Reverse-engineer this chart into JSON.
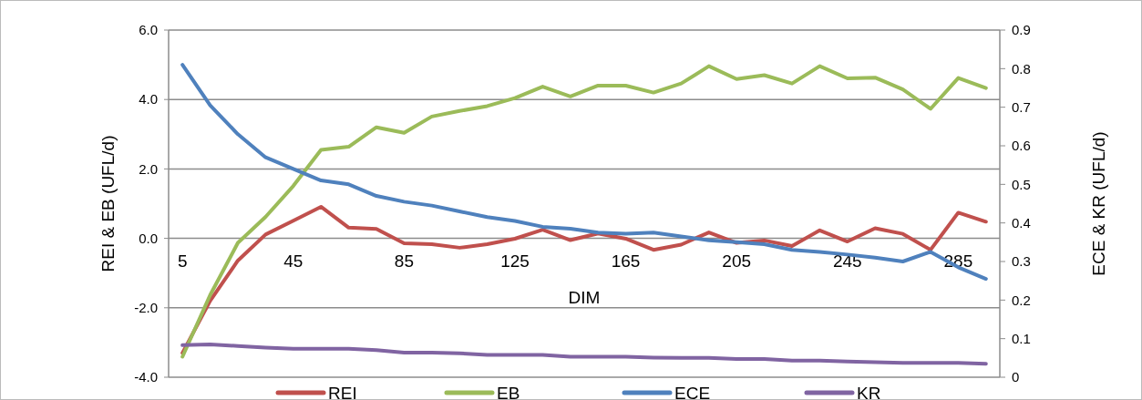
{
  "chart_data": {
    "type": "line",
    "xlabel": "DIM",
    "ylabel": "REI & EB (UFL/d)",
    "y2label": "ECE & KR (UFL/d)",
    "x": [
      5,
      15,
      25,
      35,
      45,
      55,
      65,
      75,
      85,
      95,
      105,
      115,
      125,
      135,
      145,
      155,
      165,
      175,
      185,
      195,
      205,
      215,
      225,
      235,
      245,
      255,
      265,
      275,
      285,
      295
    ],
    "xlim": [
      0,
      300
    ],
    "xticks": [
      5,
      45,
      85,
      125,
      165,
      205,
      245,
      285
    ],
    "ylim": [
      -4,
      6
    ],
    "yticks": [
      {
        "value": -4,
        "label": "-4.0"
      },
      {
        "value": -2,
        "label": "-2.0"
      },
      {
        "value": 0,
        "label": "0.0"
      },
      {
        "value": 2,
        "label": "2.0"
      },
      {
        "value": 4,
        "label": "4.0"
      },
      {
        "value": 6,
        "label": "6.0"
      }
    ],
    "y2lim": [
      0,
      0.9
    ],
    "y2ticks": [
      0,
      0.1,
      0.2,
      0.3,
      0.4,
      0.5,
      0.6,
      0.7,
      0.8,
      0.9
    ],
    "grid": "y",
    "legend": "bottom",
    "series": [
      {
        "name": "REI",
        "color": "#c0504d",
        "values": [
          -3.3,
          -1.8,
          -0.64,
          0.11,
          0.51,
          0.91,
          0.31,
          0.27,
          -0.14,
          -0.17,
          -0.27,
          -0.17,
          -0.01,
          0.25,
          -0.05,
          0.14,
          -0.01,
          -0.33,
          -0.18,
          0.17,
          -0.13,
          -0.06,
          -0.22,
          0.23,
          -0.09,
          0.29,
          0.13,
          -0.33,
          0.74,
          0.48
        ]
      },
      {
        "name": "EB",
        "color": "#9bbb59",
        "values": [
          -3.41,
          -1.63,
          -0.13,
          0.62,
          1.51,
          2.55,
          2.64,
          3.2,
          3.04,
          3.51,
          3.67,
          3.81,
          4.04,
          4.37,
          4.09,
          4.4,
          4.4,
          4.2,
          4.46,
          4.96,
          4.59,
          4.7,
          4.46,
          4.96,
          4.61,
          4.63,
          4.29,
          3.73,
          4.62,
          4.33
        ]
      },
      {
        "name": "ECE",
        "color": "#4f81bd",
        "axis": "y2",
        "values": [
          0.81,
          0.705,
          0.63,
          0.57,
          0.54,
          0.51,
          0.5,
          0.47,
          0.455,
          0.445,
          0.43,
          0.415,
          0.405,
          0.39,
          0.385,
          0.375,
          0.372,
          0.375,
          0.365,
          0.355,
          0.35,
          0.345,
          0.33,
          0.325,
          0.318,
          0.31,
          0.3,
          0.325,
          0.285,
          0.255
        ]
      },
      {
        "name": "KR",
        "color": "#8064a2",
        "axis": "y2",
        "values": [
          0.083,
          0.085,
          0.081,
          0.077,
          0.074,
          0.074,
          0.074,
          0.07,
          0.064,
          0.064,
          0.062,
          0.058,
          0.058,
          0.058,
          0.053,
          0.053,
          0.053,
          0.051,
          0.05,
          0.05,
          0.047,
          0.047,
          0.043,
          0.043,
          0.041,
          0.039,
          0.037,
          0.037,
          0.037,
          0.035
        ]
      }
    ]
  }
}
